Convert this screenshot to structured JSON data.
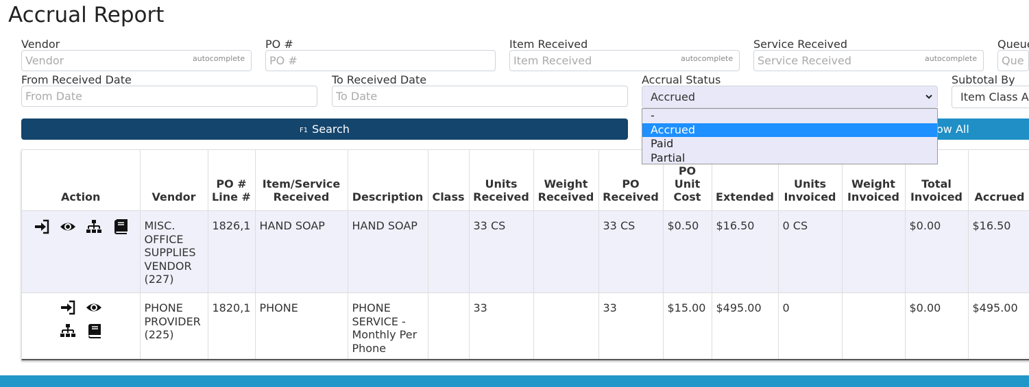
{
  "page": {
    "title": "Accrual Report"
  },
  "filters": {
    "vendor": {
      "label": "Vendor",
      "placeholder": "Vendor",
      "hint": "autocomplete"
    },
    "po": {
      "label": "PO #",
      "placeholder": "PO #"
    },
    "item": {
      "label": "Item Received",
      "placeholder": "Item Received",
      "hint": "autocomplete"
    },
    "service": {
      "label": "Service Received",
      "placeholder": "Service Received",
      "hint": "autocomplete"
    },
    "queue": {
      "label": "Queue",
      "placeholder": "Queue"
    },
    "from_date": {
      "label": "From Received Date",
      "placeholder": "From Date"
    },
    "to_date": {
      "label": "To Received Date",
      "placeholder": "To Date"
    },
    "accrual_status": {
      "label": "Accrual Status",
      "value": "Accrued",
      "options": [
        "-",
        "Accrued",
        "Paid",
        "Partial"
      ],
      "selected_index": 1
    },
    "subtotal_by": {
      "label": "Subtotal By",
      "value": "Item Class A"
    }
  },
  "buttons": {
    "search_key": "F1",
    "search_label": "Search",
    "show_all_label": "ow All"
  },
  "table": {
    "headers": {
      "action": "Action",
      "vendor": "Vendor",
      "po_line_1": "PO #",
      "po_line_2": "Line #",
      "item_1": "Item/Service",
      "item_2": "Received",
      "description": "Description",
      "class": "Class",
      "units_received_1": "Units",
      "units_received_2": "Received",
      "weight_received_1": "Weight",
      "weight_received_2": "Received",
      "po_received_1": "PO",
      "po_received_2": "Received",
      "po_unit_cost_1": "PO",
      "po_unit_cost_2": "Unit",
      "po_unit_cost_3": "Cost",
      "extended": "Extended",
      "units_invoiced_1": "Units",
      "units_invoiced_2": "Invoiced",
      "weight_invoiced_1": "Weight",
      "weight_invoiced_2": "Invoiced",
      "total_invoiced_1": "Total",
      "total_invoiced_2": "Invoiced",
      "accrued": "Accrued"
    },
    "rows": [
      {
        "vendor": "MISC. OFFICE SUPPLIES VENDOR (227)",
        "po_line": "1826,1",
        "item": "HAND SOAP",
        "description": "HAND SOAP",
        "class": "",
        "units_received": "33 CS",
        "weight_received": "",
        "po_received": "33 CS",
        "po_unit_cost": "$0.50",
        "extended": "$16.50",
        "units_invoiced": "0 CS",
        "weight_invoiced": "",
        "total_invoiced": "$0.00",
        "accrued": "$16.50"
      },
      {
        "vendor": "PHONE PROVIDER (225)",
        "po_line": "1820,1",
        "item": "PHONE",
        "description": "PHONE SERVICE - Monthly Per Phone",
        "class": "",
        "units_received": "33",
        "weight_received": "",
        "po_received": "33",
        "po_unit_cost": "$15.00",
        "extended": "$495.00",
        "units_invoiced": "0",
        "weight_invoiced": "",
        "total_invoiced": "$0.00",
        "accrued": "$495.00"
      }
    ]
  },
  "icons": {
    "receive": "sign-in-icon",
    "view": "eye-icon",
    "hierarchy": "sitemap-icon",
    "ledger": "book-icon"
  }
}
